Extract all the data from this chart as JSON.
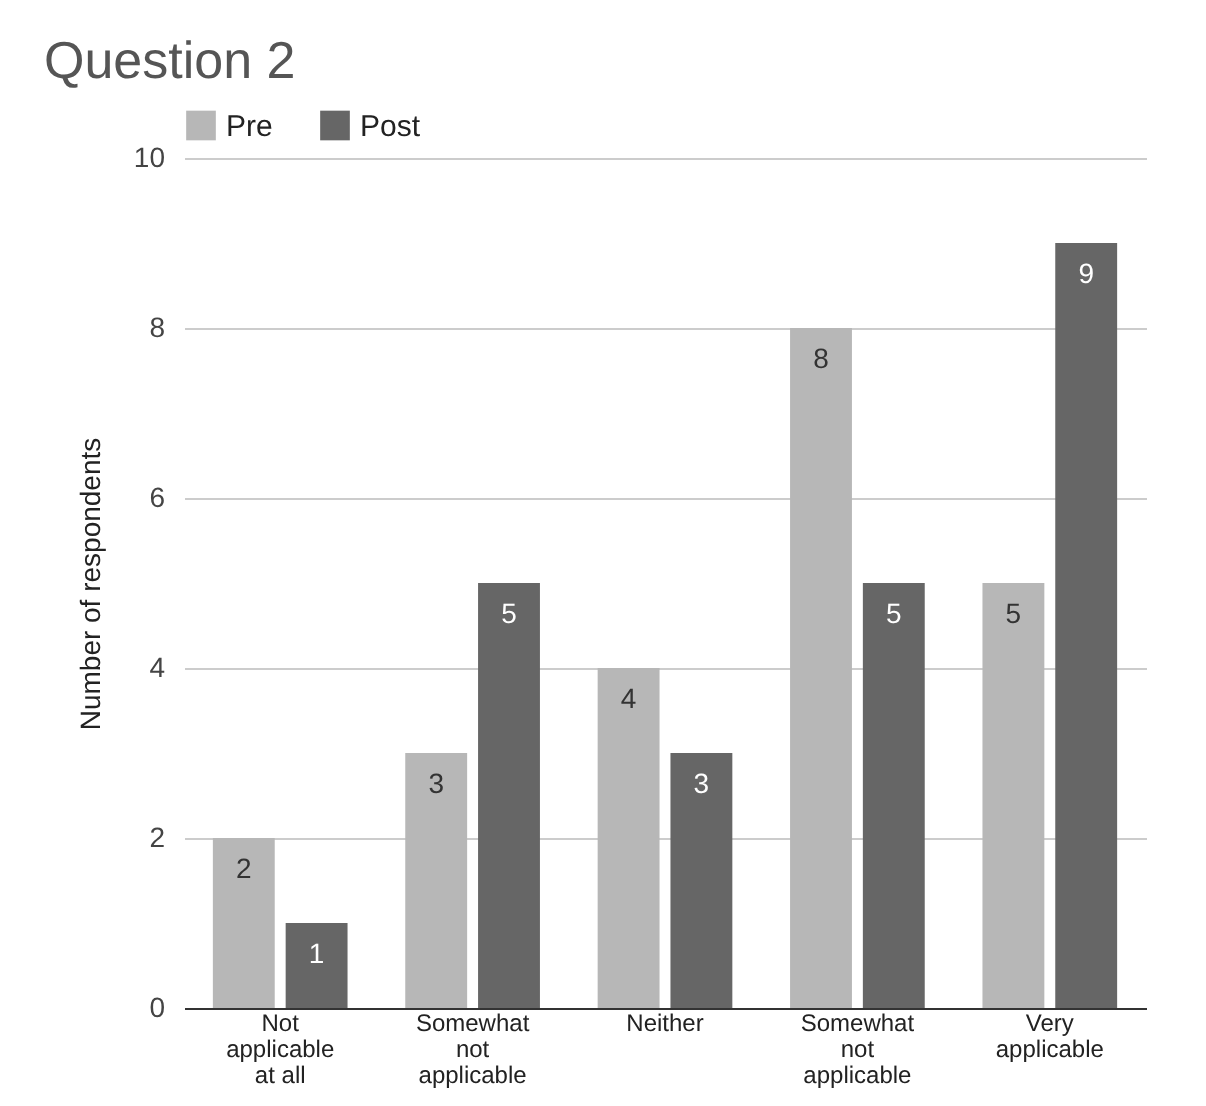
{
  "chart_data": {
    "type": "bar",
    "title": "Question 2",
    "ylabel": "Number of respondents",
    "categories": [
      "Not applicable at all",
      "Somewhat not applicable",
      "Neither",
      "Somewhat not applicable",
      "Very applicable"
    ],
    "series": [
      {
        "name": "Pre",
        "color": "#b7b7b7",
        "values": [
          2,
          3,
          4,
          8,
          5
        ]
      },
      {
        "name": "Post",
        "color": "#666666",
        "values": [
          1,
          5,
          3,
          5,
          9
        ]
      }
    ],
    "ylim": [
      0,
      10
    ],
    "yticks": [
      0,
      2,
      4,
      6,
      8,
      10
    ],
    "grid": "y",
    "legend": "top",
    "data_labels": true
  }
}
